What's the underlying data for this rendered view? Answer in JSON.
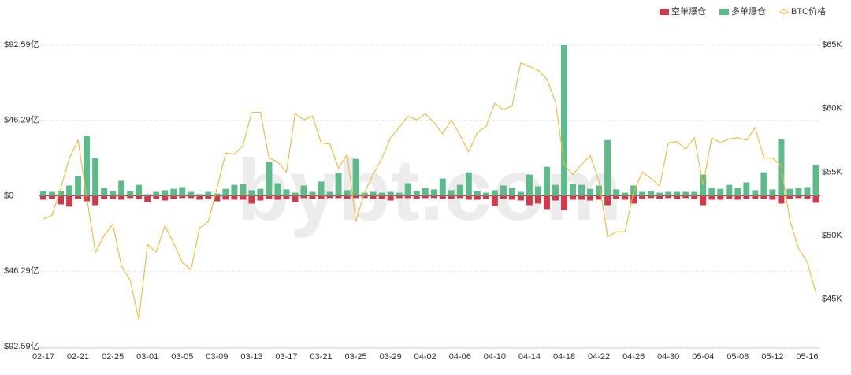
{
  "chart_data": {
    "type": "bar",
    "watermark": "bybt.com",
    "legend": "top-right",
    "grid": true,
    "categories": [
      "02-17",
      null,
      null,
      null,
      "02-21",
      null,
      null,
      null,
      "02-25",
      null,
      null,
      null,
      "03-01",
      null,
      null,
      null,
      "03-05",
      null,
      null,
      null,
      "03-09",
      null,
      null,
      null,
      "03-13",
      null,
      null,
      null,
      "03-17",
      null,
      null,
      null,
      "03-21",
      null,
      null,
      null,
      "03-25",
      null,
      null,
      null,
      "03-29",
      null,
      null,
      null,
      "04-02",
      null,
      null,
      null,
      "04-06",
      null,
      null,
      null,
      "04-10",
      null,
      null,
      null,
      "04-14",
      null,
      null,
      null,
      "04-18",
      null,
      null,
      null,
      "04-22",
      null,
      null,
      null,
      "04-26",
      null,
      null,
      null,
      "04-30",
      null,
      null,
      null,
      "05-04",
      null,
      null,
      null,
      "05-08",
      null,
      null,
      null,
      "05-12",
      null,
      null,
      null,
      "05-16",
      null
    ],
    "ylim": [
      -92.59,
      92.59
    ],
    "yticks": [
      {
        "value": 92.59,
        "label": "$92.59亿"
      },
      {
        "value": 46.29,
        "label": "$46.29亿"
      },
      {
        "value": 0,
        "label": "$0"
      },
      {
        "value": -46.29,
        "label": "$46.29亿"
      },
      {
        "value": -92.59,
        "label": "$92.59亿"
      }
    ],
    "y2lim": [
      41270,
      65000
    ],
    "y2ticks": [
      {
        "value": 65000,
        "label": "$65K"
      },
      {
        "value": 60000,
        "label": "$60K"
      },
      {
        "value": 55000,
        "label": "$55K"
      },
      {
        "value": 50000,
        "label": "$50K"
      },
      {
        "value": 45000,
        "label": "$45K"
      }
    ],
    "series": [
      {
        "name": "空单爆仓",
        "type": "bar",
        "color": "#d0394b",
        "values": [
          -2.4,
          -1.9,
          -5.3,
          -6.7,
          -1.9,
          -3.4,
          -5.8,
          -1.9,
          -1.9,
          -2.4,
          -1.4,
          -1.9,
          -3.9,
          -1.9,
          -2.9,
          -1.9,
          -1.4,
          -1.4,
          -2.4,
          -1.9,
          -3.4,
          -2.4,
          -2.4,
          -2.4,
          -4.8,
          -2.9,
          -1.9,
          -2.4,
          -1.9,
          -3.9,
          -1.4,
          -1.9,
          -1.9,
          -1.4,
          -1.4,
          -1.9,
          -1.4,
          -1.4,
          -1.9,
          -1.9,
          -2.9,
          -1.4,
          -1.4,
          -1.9,
          -1.4,
          -1.4,
          -1.9,
          -1.9,
          -1.4,
          -2.4,
          -2.4,
          -1.9,
          -6.3,
          -1.9,
          -2.4,
          -2.9,
          -5.8,
          -4.8,
          -8.2,
          -2.9,
          -8.7,
          -2.4,
          -2.4,
          -2.9,
          -2.4,
          -5.8,
          -1.9,
          -2.4,
          -4.8,
          -1.9,
          -1.4,
          -1.9,
          -1.4,
          -1.9,
          -1.4,
          -1.9,
          -5.8,
          -2.4,
          -2.4,
          -1.9,
          -2.4,
          -1.9,
          -1.9,
          -1.9,
          -2.4,
          -4.8,
          -1.9,
          -1.4,
          -1.9,
          -4.3
        ]
      },
      {
        "name": "多单爆仓",
        "type": "bar",
        "color": "#5dbb8a",
        "values": [
          2.9,
          2.4,
          2.9,
          6.3,
          12,
          36.6,
          23,
          4.8,
          2.9,
          9.2,
          2.9,
          6.7,
          1,
          2.4,
          3.4,
          4.3,
          5.3,
          2.4,
          1,
          2.4,
          1.4,
          4.3,
          6.7,
          7.2,
          3.4,
          4.3,
          20.7,
          7.7,
          3.9,
          1.9,
          6.3,
          2.4,
          8.7,
          2.4,
          14,
          3.4,
          22.6,
          1.9,
          2.4,
          1.9,
          2.4,
          1.9,
          7.7,
          2.9,
          4.8,
          3.9,
          10.6,
          3.4,
          6.7,
          14.4,
          2.9,
          1.9,
          3.4,
          6.3,
          4.8,
          2.4,
          13,
          5.8,
          17.8,
          6.7,
          92.59,
          7.2,
          6.7,
          4.3,
          6.3,
          34.2,
          3.9,
          1.9,
          6.3,
          2.4,
          2.9,
          1.9,
          2.4,
          2.4,
          2.4,
          2.4,
          13,
          4.8,
          4.3,
          6.7,
          4.8,
          8.2,
          3.4,
          14.4,
          3.9,
          34.7,
          4.3,
          4.8,
          5.3,
          18.8
        ]
      },
      {
        "name": "BTC价格",
        "type": "line",
        "axis": "y2",
        "color": "#f0b83c",
        "values": [
          51300,
          51600,
          53700,
          56100,
          57500,
          53000,
          48700,
          50000,
          50900,
          47600,
          46500,
          43400,
          49300,
          48700,
          50800,
          49400,
          47900,
          47300,
          50600,
          51100,
          53700,
          56500,
          56400,
          57100,
          59700,
          59700,
          56100,
          55800,
          55000,
          59600,
          59100,
          59400,
          57300,
          57200,
          55300,
          56400,
          51100,
          53400,
          54800,
          56100,
          57700,
          58500,
          59400,
          59100,
          59600,
          58900,
          58000,
          59100,
          57900,
          56600,
          58100,
          58600,
          60400,
          59900,
          60200,
          63600,
          63300,
          63000,
          62300,
          60500,
          55600,
          54800,
          55600,
          56300,
          54300,
          49900,
          50300,
          50300,
          53400,
          55000,
          54500,
          53900,
          57300,
          57400,
          56800,
          57700,
          54000,
          57700,
          57300,
          57600,
          57700,
          57500,
          58500,
          56100,
          56100,
          55500,
          51200,
          49000,
          47900,
          45500
        ]
      }
    ]
  }
}
